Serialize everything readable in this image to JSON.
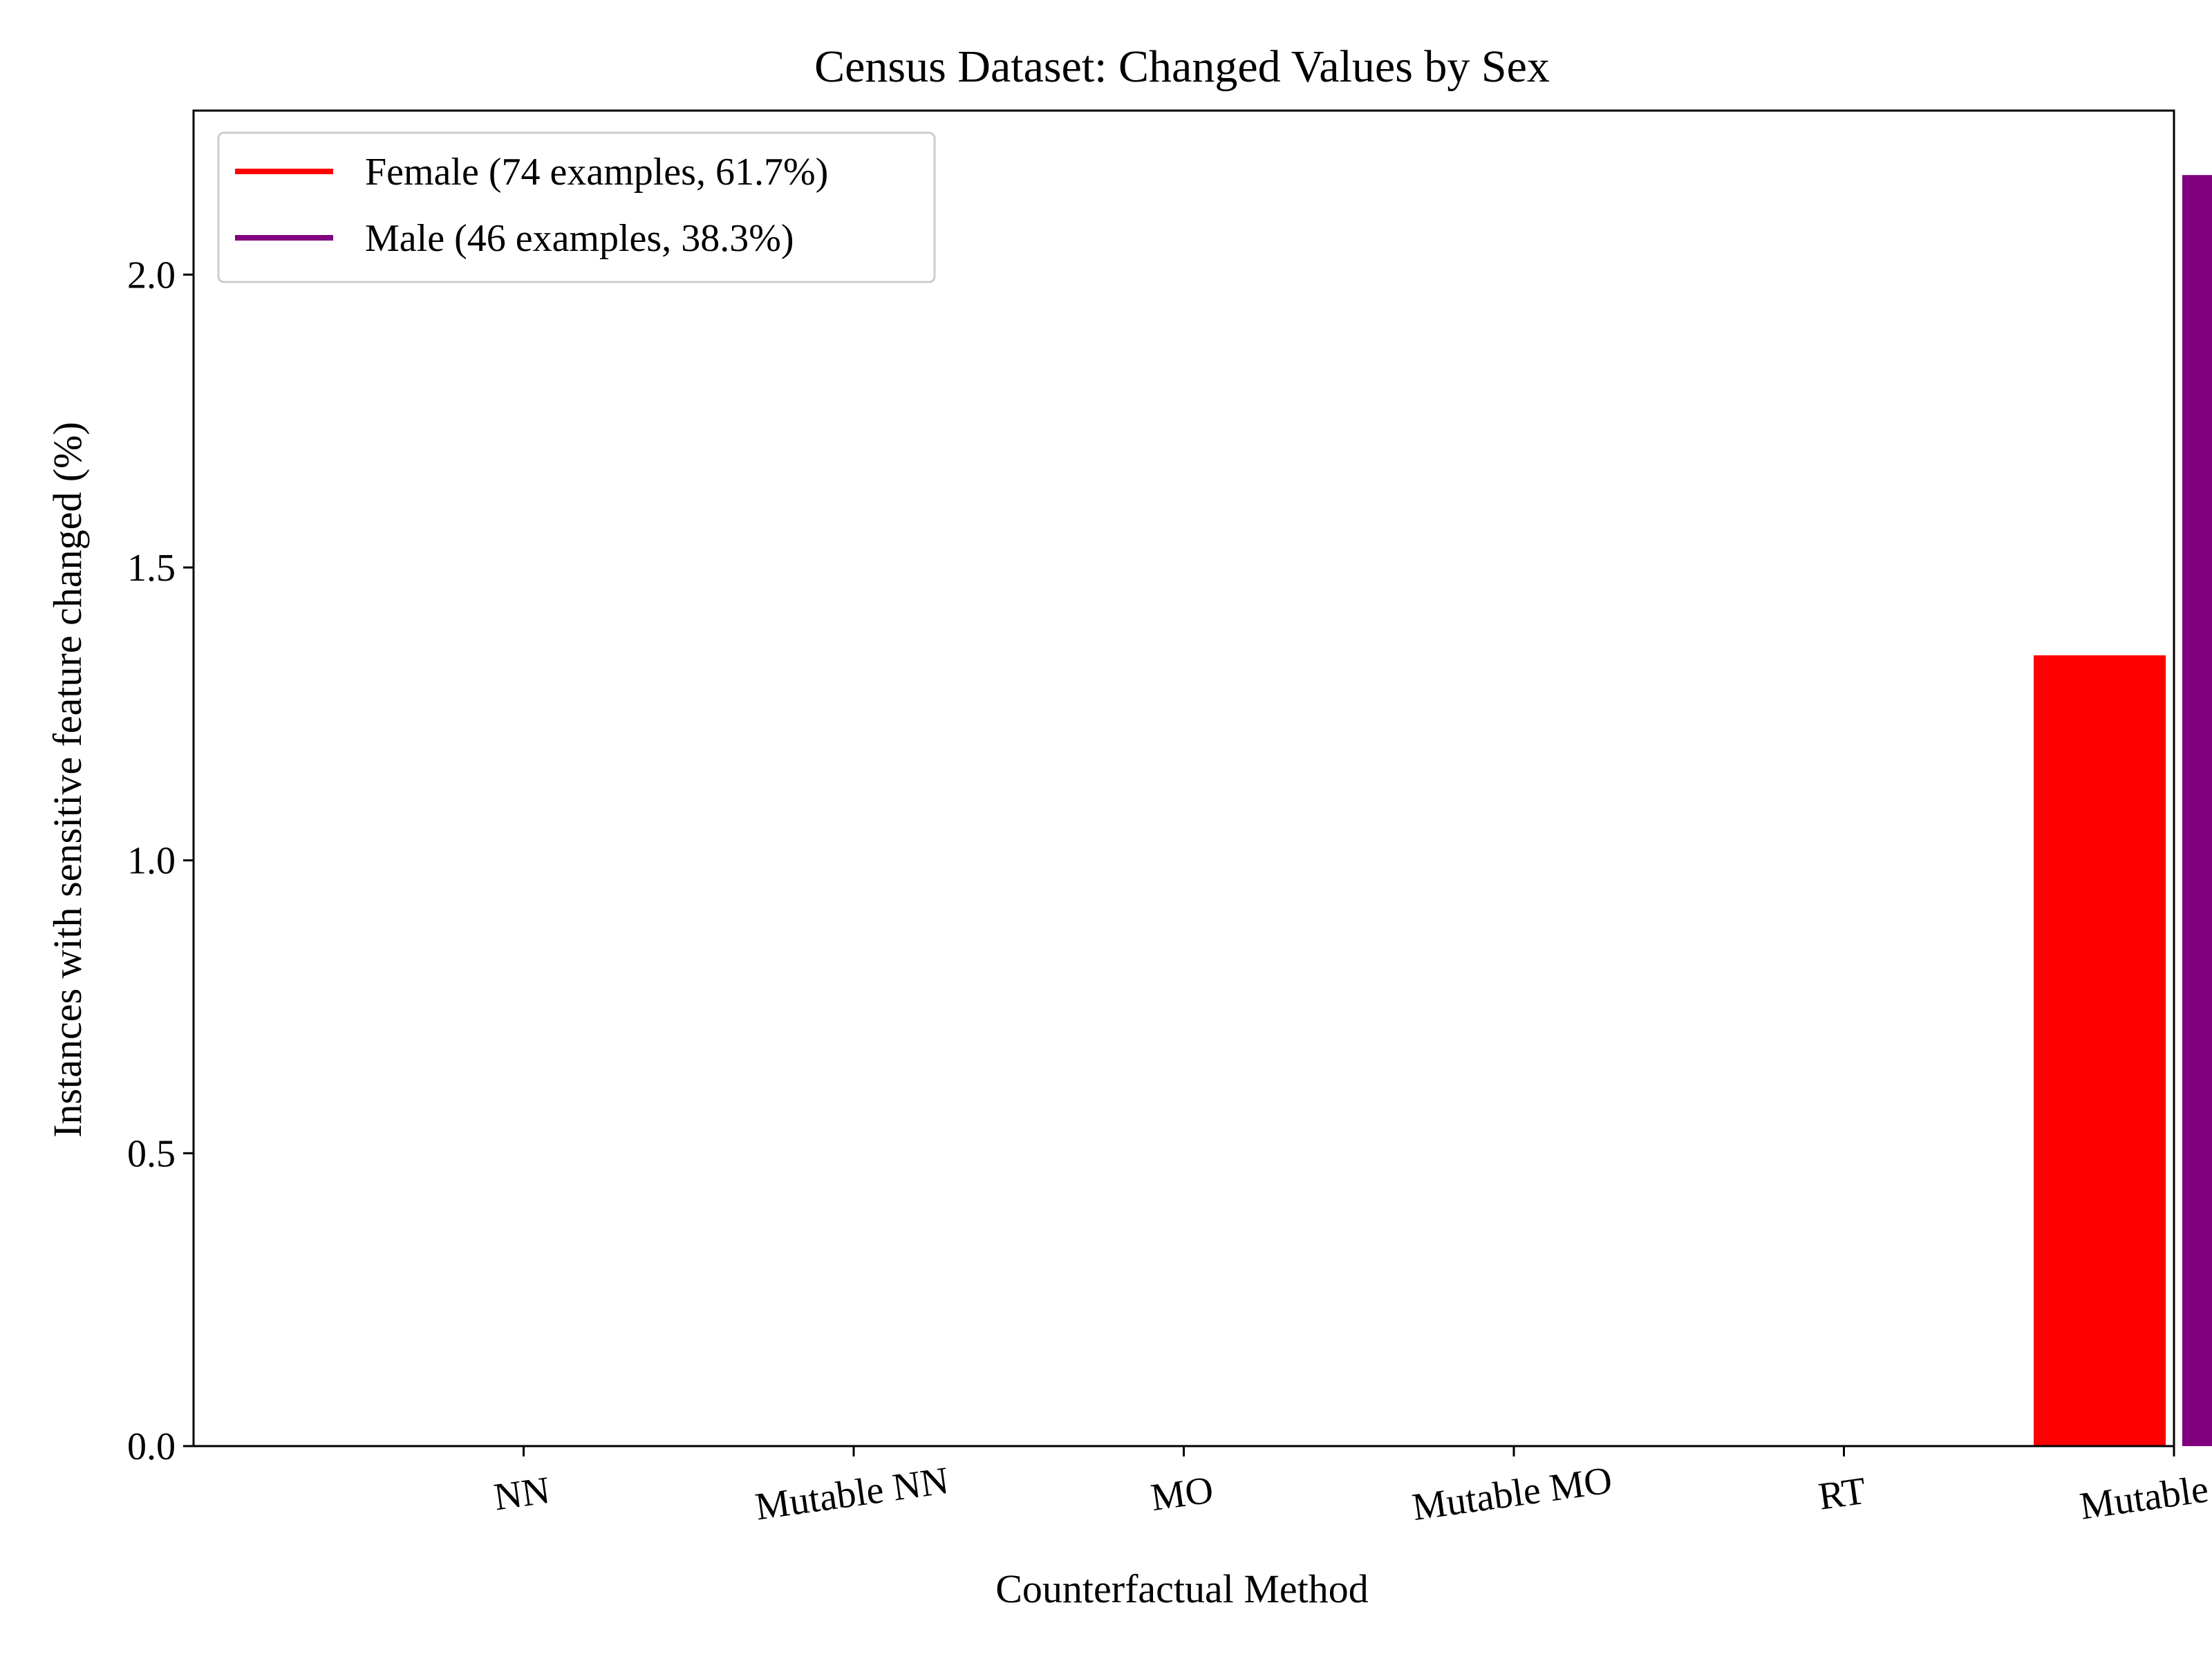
{
  "chart_data": {
    "type": "bar",
    "title": "Census Dataset: Changed Values by Sex",
    "xlabel": "Counterfactual Method",
    "ylabel": "Instances with sensitive feature changed (%)",
    "categories": [
      "NN",
      "Mutable NN",
      "MO",
      "Mutable MO",
      "RT",
      "Mutable RT"
    ],
    "series": [
      {
        "name": "Female (74 examples, 61.7%)",
        "color": "#ff0000",
        "values": [
          0,
          0,
          0,
          0,
          0,
          1.35
        ]
      },
      {
        "name": "Male (46 examples, 38.3%)",
        "color": "#800080",
        "values": [
          0,
          0,
          0,
          0,
          0,
          2.17
        ]
      }
    ],
    "ylim": [
      0,
      2.28
    ],
    "yticks": [
      0.0,
      0.5,
      1.0,
      1.5,
      2.0
    ],
    "ytick_labels": [
      "0.0",
      "0.5",
      "1.0",
      "1.5",
      "2.0"
    ],
    "grid": false,
    "legend_position": "top-left"
  }
}
